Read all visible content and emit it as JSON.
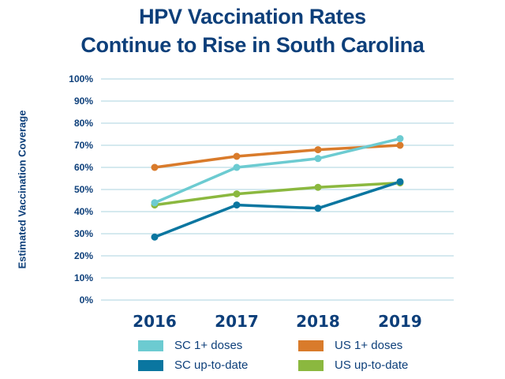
{
  "chart_data": {
    "type": "line",
    "title": "HPV Vaccination Rates Continue to Rise in South Carolina",
    "title_lines": [
      "HPV Vaccination Rates",
      "Continue to Rise in South Carolina"
    ],
    "xlabel": "",
    "ylabel": "Estimated Vaccination Coverage",
    "categories": [
      "2016",
      "2017",
      "2018",
      "2019"
    ],
    "ylim": [
      0,
      100
    ],
    "yticks": [
      "0%",
      "10%",
      "20%",
      "30%",
      "40%",
      "50%",
      "60%",
      "70%",
      "80%",
      "90%",
      "100%"
    ],
    "grid": true,
    "legend_position": "bottom",
    "series": [
      {
        "name": "SC 1+ doses",
        "color": "#6ccbd1",
        "values": [
          44,
          60,
          64,
          73
        ]
      },
      {
        "name": "US 1+ doses",
        "color": "#d97b2b",
        "values": [
          60,
          65,
          68,
          70
        ]
      },
      {
        "name": "SC up-to-date",
        "color": "#0a76a0",
        "values": [
          28.5,
          43,
          41.5,
          53.5
        ]
      },
      {
        "name": "US up-to-date",
        "color": "#8bb83f",
        "values": [
          43,
          48,
          51,
          53
        ]
      }
    ],
    "grid_color": "#d5e9ef",
    "text_color": "#0d3f7a"
  }
}
